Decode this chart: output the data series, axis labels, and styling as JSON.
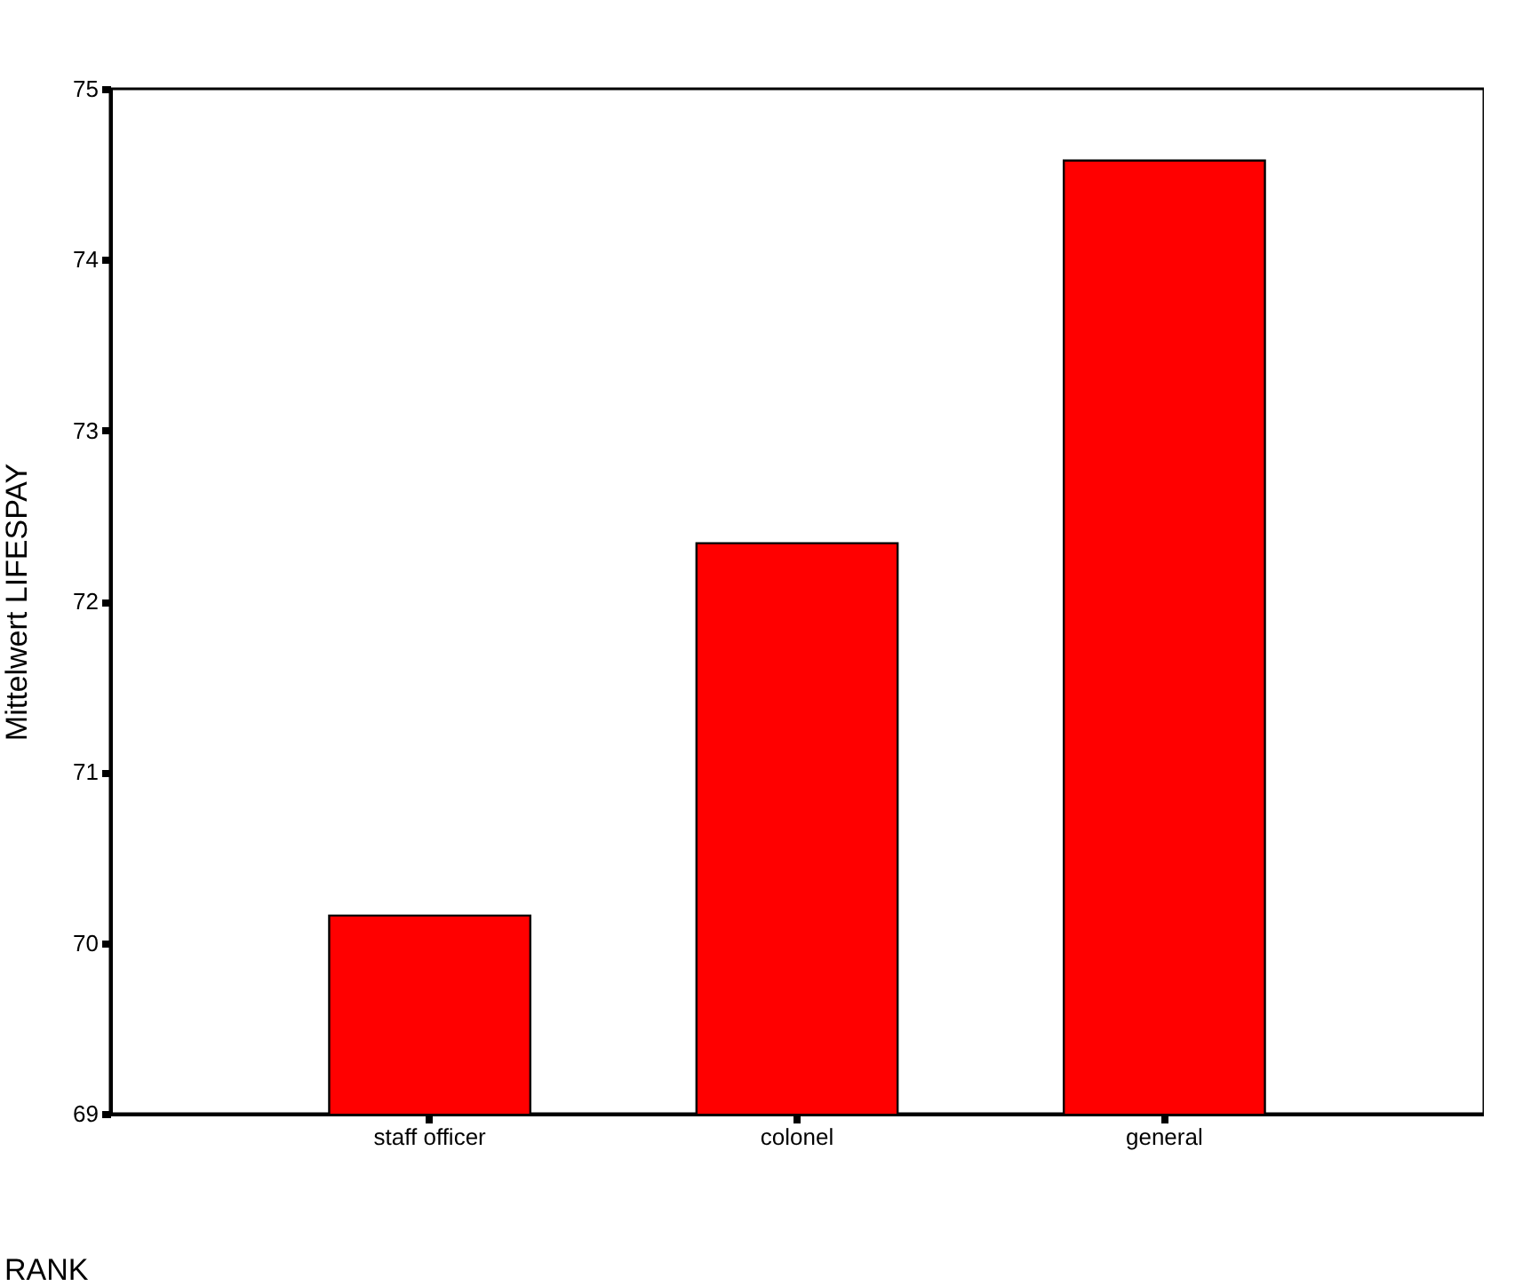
{
  "chart_data": {
    "type": "bar",
    "xlabel": "RANK",
    "ylabel": "Mittelwert LIFESPAY",
    "categories": [
      "staff officer",
      "colonel",
      "general"
    ],
    "values": [
      70.16,
      72.34,
      74.58
    ],
    "color": "#ff0000",
    "ylim": [
      69,
      75
    ],
    "yticks": [
      69,
      70,
      71,
      72,
      73,
      74,
      75
    ],
    "grid": false
  }
}
